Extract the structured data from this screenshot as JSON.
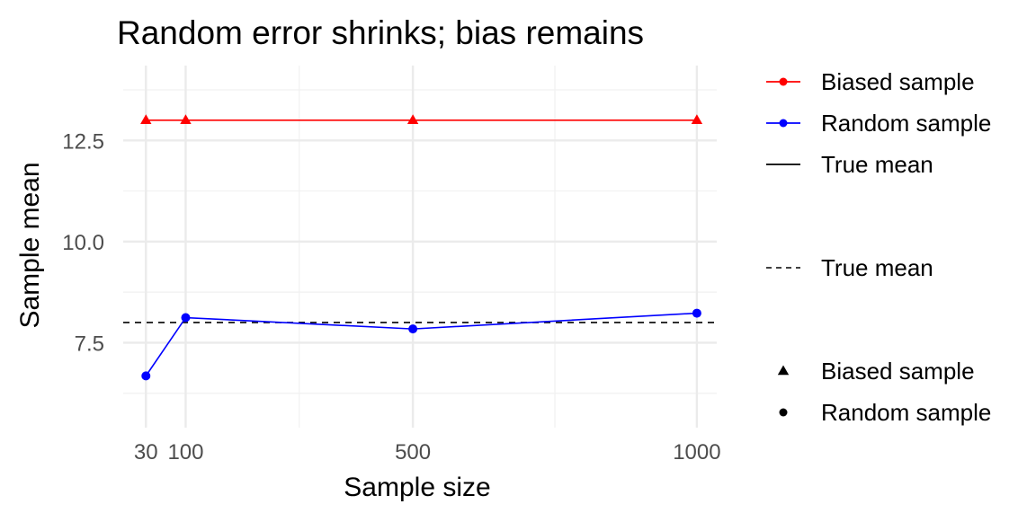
{
  "chart_data": {
    "type": "line",
    "title": "Random error shrinks; bias remains",
    "xlabel": "Sample size",
    "ylabel": "Sample mean",
    "x": [
      30,
      100,
      500,
      1000
    ],
    "x_ticks": [
      {
        "value": 30,
        "label": "30"
      },
      {
        "value": 100,
        "label": "100"
      },
      {
        "value": 500,
        "label": "500"
      },
      {
        "value": 1000,
        "label": "1000"
      }
    ],
    "xlim": [
      -10,
      1035
    ],
    "ylim": [
      5.4,
      14.35
    ],
    "y_ticks": [
      {
        "value": 7.5,
        "label": "7.5"
      },
      {
        "value": 10.0,
        "label": "10.0"
      },
      {
        "value": 12.5,
        "label": "12.5"
      }
    ],
    "y_minor_ticks": [
      6.25,
      8.75,
      11.25,
      13.75
    ],
    "x_minor_ticks": [
      300,
      750
    ],
    "grid": true,
    "series": [
      {
        "name": "Biased sample",
        "color": "#ff0000",
        "shape": "triangle",
        "x": [
          30,
          100,
          500,
          1000
        ],
        "values": [
          13.0,
          13.0,
          13.0,
          13.0
        ]
      },
      {
        "name": "Random sample",
        "color": "#0000ff",
        "shape": "circle",
        "x": [
          30,
          100,
          500,
          1000
        ],
        "values": [
          6.68,
          8.12,
          7.84,
          8.23
        ]
      }
    ],
    "reference_line": {
      "name": "True mean",
      "value": 8.0,
      "style": "dashed",
      "color": "#000000"
    },
    "legend": {
      "placement": "right",
      "color_title": "",
      "color_items": [
        {
          "label": "Biased sample",
          "color": "#ff0000"
        },
        {
          "label": "Random sample",
          "color": "#0000ff"
        },
        {
          "label": "True mean",
          "color": "#000000"
        }
      ],
      "linetype_items": [
        {
          "label": "True mean",
          "style": "dashed"
        }
      ],
      "shape_items": [
        {
          "label": "Biased sample",
          "shape": "triangle"
        },
        {
          "label": "Random sample",
          "shape": "circle"
        }
      ]
    }
  }
}
